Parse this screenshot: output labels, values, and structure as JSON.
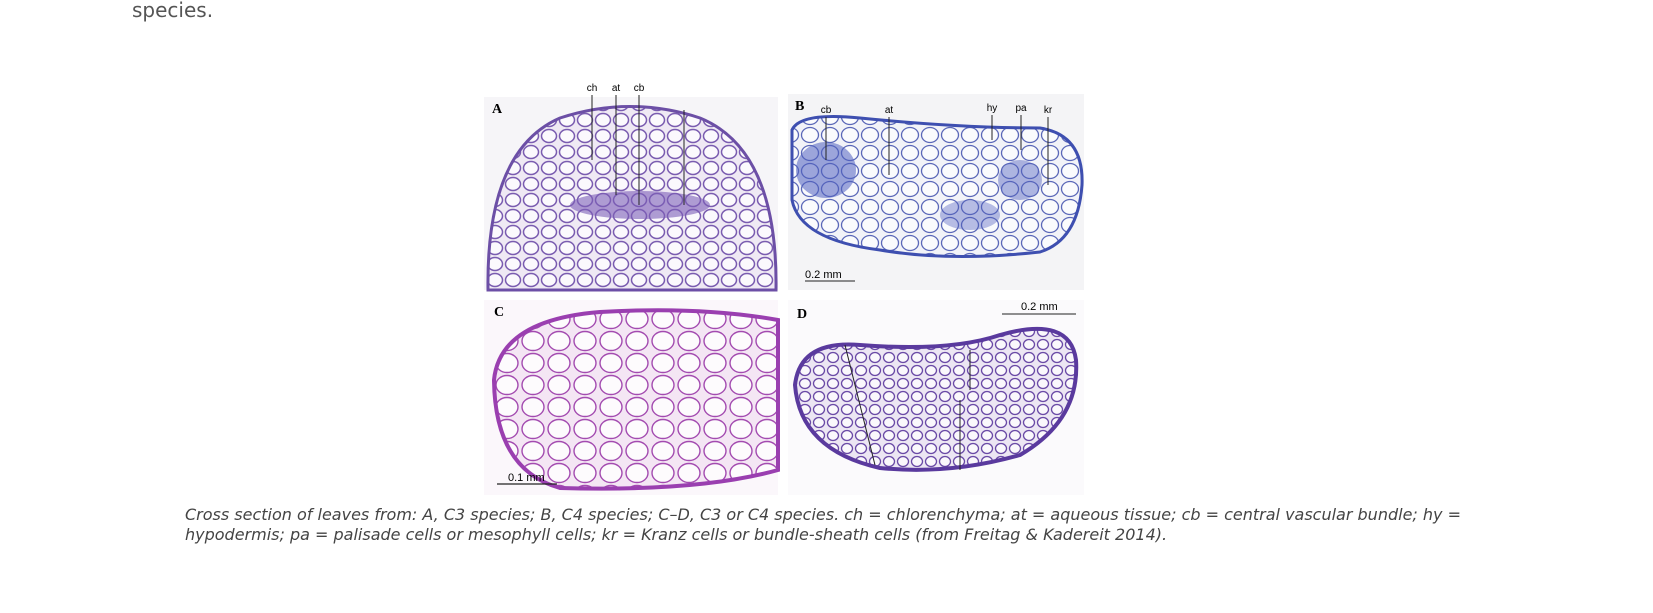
{
  "text_fragment": "species.",
  "figure": {
    "panels": [
      {
        "label": "A",
        "annotations": [
          "ch",
          "at",
          "cb"
        ]
      },
      {
        "label": "B",
        "annotations": [
          "cb",
          "at",
          "hy",
          "pa",
          "kr"
        ],
        "scale_bar": "0.2 mm"
      },
      {
        "label": "C",
        "scale_bar": "0.1 mm"
      },
      {
        "label": "D",
        "scale_bar": "0.2 mm"
      }
    ],
    "caption": [
      "Cross section of leaves from: A, C3 species; B, C4 species; C–D, C3 or C4 species. ch = chlorenchyma; at = aqueous tissue; cb = central vascular bundle; hy =",
      "hypodermis; pa = palisade cells or mesophyll cells; kr = Kranz cells or bundle-sheath cells (from Freitag & Kadereit 2014)."
    ]
  }
}
